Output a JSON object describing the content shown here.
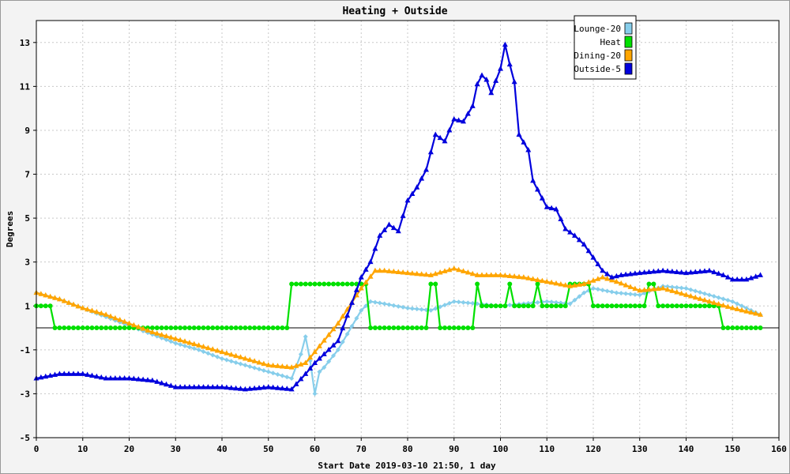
{
  "chart_data": {
    "type": "line",
    "title": "Heating + Outside",
    "xlabel": "Start Date 2019-03-10 21:50, 1 day",
    "ylabel": "Degrees",
    "xlim": [
      0,
      160
    ],
    "ylim": [
      -5,
      14
    ],
    "xticks": [
      0,
      10,
      20,
      30,
      40,
      50,
      60,
      70,
      80,
      90,
      100,
      110,
      120,
      130,
      140,
      150,
      160
    ],
    "yticks": [
      -5,
      -3,
      -1,
      1,
      3,
      5,
      7,
      9,
      11,
      13
    ],
    "grid": true,
    "zero_line": true,
    "legend_position": "top-right",
    "series": [
      {
        "name": "Lounge-20",
        "color": "#87ceeb",
        "marker": "diamond",
        "x": [
          0,
          5,
          10,
          15,
          20,
          25,
          30,
          35,
          40,
          45,
          50,
          55,
          57,
          58,
          59,
          60,
          61,
          62,
          65,
          70,
          72,
          75,
          80,
          85,
          90,
          95,
          100,
          105,
          110,
          115,
          118,
          120,
          125,
          130,
          135,
          140,
          145,
          150,
          156
        ],
        "y": [
          1.6,
          1.3,
          0.9,
          0.5,
          0.1,
          -0.3,
          -0.7,
          -1.0,
          -1.4,
          -1.7,
          -2.0,
          -2.3,
          -1.2,
          -0.4,
          -1.5,
          -3.0,
          -2.0,
          -1.8,
          -1.0,
          0.8,
          1.2,
          1.1,
          0.9,
          0.8,
          1.2,
          1.1,
          1.0,
          1.1,
          1.2,
          1.1,
          1.6,
          1.8,
          1.6,
          1.5,
          1.9,
          1.8,
          1.5,
          1.2,
          0.6
        ]
      },
      {
        "name": "Heat",
        "color": "#00e000",
        "marker": "circle",
        "x": [
          0,
          3,
          4,
          54,
          55,
          71,
          72,
          84,
          85,
          86,
          87,
          94,
          95,
          96,
          101,
          102,
          103,
          107,
          108,
          109,
          114,
          115,
          119,
          120,
          131,
          132,
          133,
          134,
          147,
          148,
          156
        ],
        "y": [
          1,
          1,
          0,
          0,
          2,
          2,
          0,
          0,
          2,
          2,
          0,
          0,
          2,
          1,
          1,
          2,
          1,
          1,
          2,
          1,
          1,
          2,
          2,
          1,
          1,
          2,
          2,
          1,
          1,
          0,
          0
        ]
      },
      {
        "name": "Dining-20",
        "color": "#ffa500",
        "marker": "triangle",
        "x": [
          0,
          5,
          10,
          15,
          20,
          25,
          30,
          35,
          40,
          45,
          50,
          55,
          58,
          60,
          65,
          70,
          73,
          75,
          80,
          85,
          90,
          95,
          100,
          105,
          110,
          115,
          118,
          122,
          125,
          130,
          135,
          140,
          145,
          150,
          156
        ],
        "y": [
          1.6,
          1.3,
          0.9,
          0.6,
          0.2,
          -0.2,
          -0.5,
          -0.8,
          -1.1,
          -1.4,
          -1.7,
          -1.8,
          -1.6,
          -1.1,
          0.2,
          1.8,
          2.6,
          2.6,
          2.5,
          2.4,
          2.7,
          2.4,
          2.4,
          2.3,
          2.1,
          1.9,
          2.0,
          2.3,
          2.1,
          1.7,
          1.8,
          1.5,
          1.2,
          0.9,
          0.6
        ]
      },
      {
        "name": "Outside-5",
        "color": "#0000dd",
        "marker": "triangle",
        "x": [
          0,
          5,
          10,
          15,
          20,
          25,
          30,
          35,
          40,
          45,
          50,
          55,
          58,
          60,
          65,
          70,
          72,
          74,
          76,
          78,
          80,
          82,
          84,
          86,
          88,
          90,
          92,
          94,
          95,
          96,
          97,
          98,
          100,
          101,
          102,
          103,
          104,
          106,
          107,
          108,
          110,
          112,
          114,
          116,
          118,
          120,
          122,
          124,
          126,
          130,
          135,
          140,
          145,
          148,
          150,
          153,
          156
        ],
        "y": [
          -2.3,
          -2.1,
          -2.1,
          -2.3,
          -2.3,
          -2.4,
          -2.7,
          -2.7,
          -2.7,
          -2.8,
          -2.7,
          -2.8,
          -2.1,
          -1.6,
          -0.6,
          2.3,
          3.0,
          4.2,
          4.7,
          4.4,
          5.8,
          6.4,
          7.2,
          8.8,
          8.5,
          9.5,
          9.4,
          10.1,
          11.1,
          11.5,
          11.3,
          10.7,
          11.8,
          12.9,
          12.0,
          11.2,
          8.8,
          8.1,
          6.7,
          6.3,
          5.5,
          5.4,
          4.5,
          4.2,
          3.8,
          3.2,
          2.6,
          2.3,
          2.4,
          2.5,
          2.6,
          2.5,
          2.6,
          2.4,
          2.2,
          2.2,
          2.4
        ]
      }
    ]
  }
}
